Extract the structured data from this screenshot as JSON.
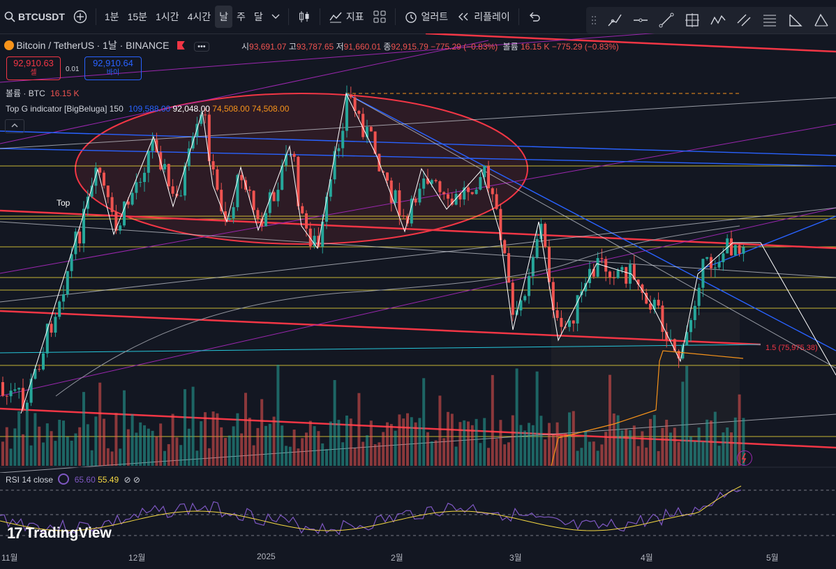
{
  "toolbar": {
    "symbol": "BTCUSDT",
    "intervals": [
      "1분",
      "15분",
      "1시간",
      "4시간",
      "날",
      "주",
      "달"
    ],
    "active_interval": "날",
    "indicators_label": "지표",
    "alert_label": "얼러트",
    "replay_label": "리플레이"
  },
  "legend": {
    "pair": "Bitcoin / TetherUS",
    "interval": "1날",
    "exchange": "BINANCE",
    "more": "•••",
    "open_label": "시",
    "open": "93,691.07",
    "high_label": "고",
    "high": "93,787.65",
    "low_label": "저",
    "low": "91,660.01",
    "close_label": "종",
    "close": "92,915.79",
    "change": "−775.29 (−0.83%)",
    "volume_label": "볼륨",
    "volume": "16.15 K",
    "volume_change": "−775.29 (−0.83%)"
  },
  "orderbox": {
    "sell_price": "92,910.63",
    "sell_label": "셀",
    "spread": "0.01",
    "buy_price": "92,910.64",
    "buy_label": "바이"
  },
  "volume_legend": {
    "label": "볼륨 · BTC",
    "value": "16.15 K"
  },
  "indicator_legend": {
    "name": "Top G indicator [BigBeluga] 150",
    "v1": "109,588.00",
    "v2": "92,048.00",
    "v3": "74,508.00",
    "v4": "74,508.00"
  },
  "annotations": {
    "top_label": "Top",
    "fib_label": "1.5 (75,975.38)"
  },
  "rsi_legend": {
    "label": "RSI 14 close",
    "v1": "65.60",
    "v2": "55.49"
  },
  "x_axis": [
    "11월",
    "12월",
    "2025",
    "2월",
    "3월",
    "4월",
    "5월"
  ],
  "branding": "TradingView",
  "colors": {
    "up": "#26a69a",
    "down": "#ef5350",
    "bg": "#131722",
    "accent_blue": "#2962ff",
    "red_line": "#f23645",
    "yellow_line": "#ffeb3b"
  }
}
